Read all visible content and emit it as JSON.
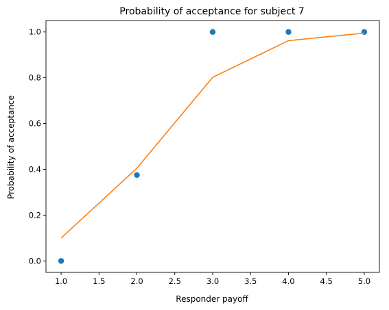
{
  "chart_data": {
    "type": "scatter",
    "title": "Probability of acceptance for subject 7",
    "xlabel": "Responder payoff",
    "ylabel": "Probability of acceptance",
    "xlim": [
      0.8,
      5.2
    ],
    "ylim": [
      -0.05,
      1.05
    ],
    "xticks": [
      1.0,
      1.5,
      2.0,
      2.5,
      3.0,
      3.5,
      4.0,
      4.5,
      5.0
    ],
    "xtick_labels": [
      "1.0",
      "1.5",
      "2.0",
      "2.5",
      "3.0",
      "3.5",
      "4.0",
      "4.5",
      "5.0"
    ],
    "yticks": [
      0.0,
      0.2,
      0.4,
      0.6,
      0.8,
      1.0
    ],
    "ytick_labels": [
      "0.0",
      "0.2",
      "0.4",
      "0.6",
      "0.8",
      "1.0"
    ],
    "grid": false,
    "legend": "none",
    "series": [
      {
        "kind": "scatter",
        "color": "#1f77b4",
        "x": [
          1,
          2,
          3,
          4,
          5
        ],
        "y": [
          0.0,
          0.375,
          1.0,
          1.0,
          1.0
        ]
      },
      {
        "kind": "line",
        "color": "#ff7f0e",
        "x": [
          1,
          2,
          3,
          4,
          5
        ],
        "y": [
          0.1,
          0.405,
          0.802,
          0.962,
          0.995
        ]
      }
    ]
  }
}
